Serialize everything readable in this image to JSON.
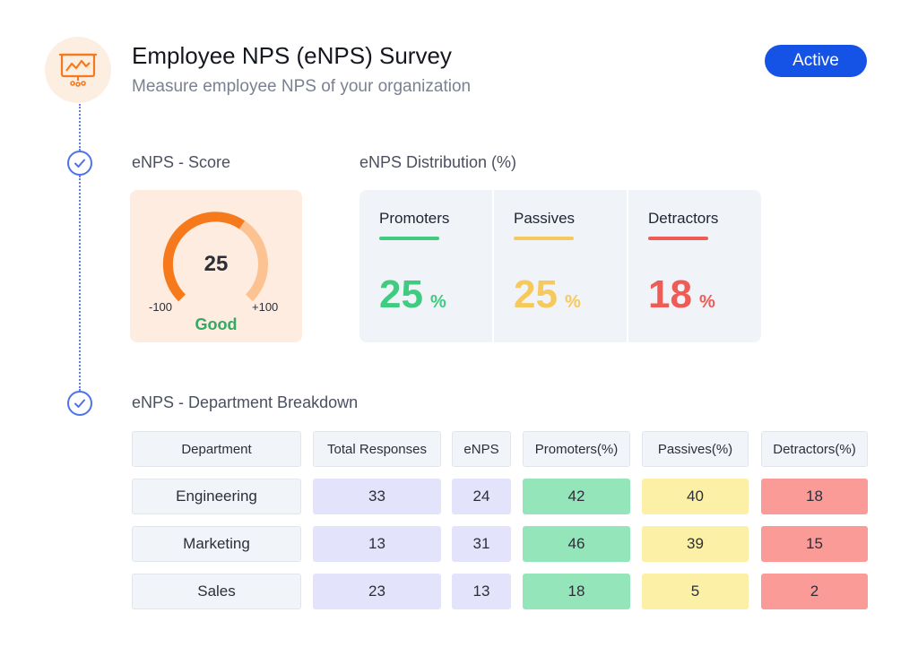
{
  "header": {
    "title": "Employee NPS (eNPS) Survey",
    "subtitle": "Measure employee NPS of your organization",
    "status_label": "Active",
    "logo_icon": "presentation-chart-icon"
  },
  "colors": {
    "accent": "#1553e6",
    "promoters": "#3fcb80",
    "passives": "#f6c95c",
    "detractors": "#ef5b55",
    "gauge_main": "#f6791b",
    "gauge_light": "#fcc291",
    "good": "#34a866"
  },
  "score": {
    "section_label": "eNPS - Score",
    "value": "25",
    "min_label": "-100",
    "max_label": "+100",
    "status": "Good",
    "numeric": 25,
    "range": [
      -100,
      100
    ]
  },
  "distribution": {
    "section_label": "eNPS Distribution (%)",
    "items": [
      {
        "label": "Promoters",
        "value": "25",
        "unit": "%"
      },
      {
        "label": "Passives",
        "value": "25",
        "unit": "%"
      },
      {
        "label": "Detractors",
        "value": "18",
        "unit": "%"
      }
    ]
  },
  "breakdown": {
    "section_label": "eNPS - Department Breakdown",
    "columns": [
      "Department",
      "Total Responses",
      "eNPS",
      "Promoters(%)",
      "Passives(%)",
      "Detractors(%)"
    ],
    "rows": [
      [
        "Engineering",
        "33",
        "24",
        "42",
        "40",
        "18"
      ],
      [
        "Marketing",
        "13",
        "31",
        "46",
        "39",
        "15"
      ],
      [
        "Sales",
        "23",
        "13",
        "18",
        "5",
        "2"
      ]
    ]
  }
}
